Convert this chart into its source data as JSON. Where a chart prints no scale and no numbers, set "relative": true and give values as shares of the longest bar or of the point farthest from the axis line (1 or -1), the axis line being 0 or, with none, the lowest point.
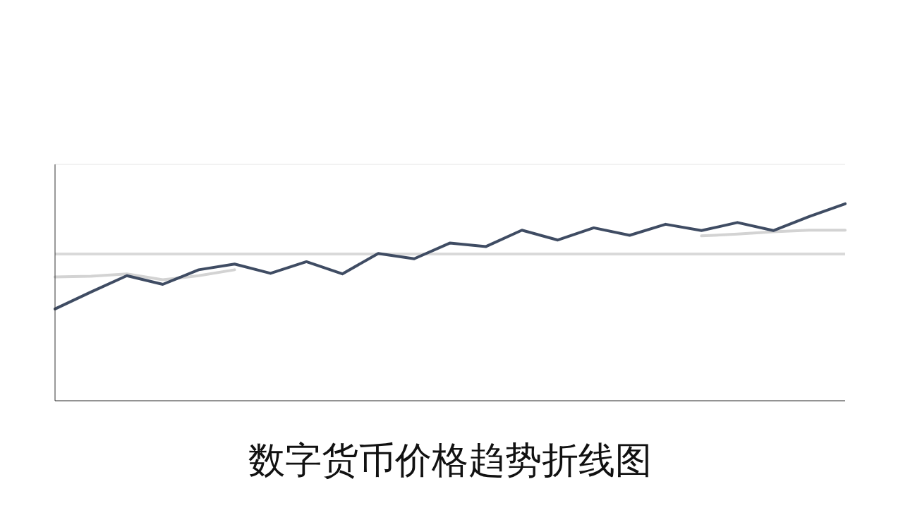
{
  "chart_data": {
    "type": "line",
    "title": "数字货币价格趋势折线图",
    "relative": true,
    "grid": "y",
    "legend": false,
    "marker": "none",
    "line_style": "solid",
    "categories": [
      null,
      null,
      null,
      null,
      null,
      null,
      null,
      null,
      null,
      null,
      null,
      null,
      null,
      null,
      null,
      null,
      null,
      null,
      null,
      null,
      null,
      null,
      null
    ],
    "series": [
      {
        "color": "#d3d3d3",
        "values": [
          0.629,
          0.632,
          0.644,
          0.614,
          0.635,
          0.665,
          null,
          null,
          null,
          null,
          null,
          null,
          null,
          null,
          null,
          null,
          null,
          null,
          0.837,
          0.846,
          0.858,
          0.866,
          0.866
        ]
      },
      {
        "color": "#3f4c63",
        "values": [
          0.466,
          0.552,
          0.635,
          0.591,
          0.665,
          0.694,
          0.647,
          0.706,
          0.644,
          0.748,
          0.721,
          0.801,
          0.783,
          0.866,
          0.816,
          0.878,
          0.84,
          0.896,
          0.864,
          0.905,
          0.864,
          0.935,
          1
        ]
      }
    ],
    "ref_lines": [
      {
        "axis": "y",
        "value": 0.745,
        "color": "#d9d9d9",
        "line_style": "solid"
      }
    ]
  }
}
